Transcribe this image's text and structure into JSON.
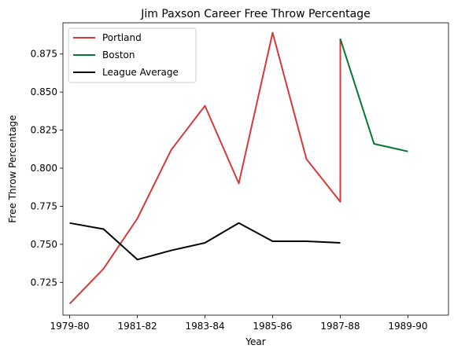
{
  "chart_data": {
    "type": "line",
    "title": "Jim Paxson Career Free Throw Percentage",
    "xlabel": "Year",
    "ylabel": "Free Throw Percentage",
    "x_tick_labels": [
      "1979-80",
      "1981-82",
      "1983-84",
      "1985-86",
      "1987-88",
      "1989-90"
    ],
    "y_tick_labels": [
      "0.725",
      "0.750",
      "0.775",
      "0.800",
      "0.825",
      "0.850",
      "0.875"
    ],
    "xlim": [
      1978.8,
      1990.2
    ],
    "ylim": [
      0.7035,
      0.8955
    ],
    "legend_position": "upper-left",
    "grid": false,
    "series": [
      {
        "name": "Portland",
        "color": "#d9383a",
        "x": [
          1979,
          1980,
          1981,
          1982,
          1983,
          1984,
          1985,
          1986,
          1987,
          1987
        ],
        "y": [
          0.711,
          0.734,
          0.767,
          0.812,
          0.841,
          0.79,
          0.889,
          0.806,
          0.778,
          0.885
        ]
      },
      {
        "name": "Boston",
        "color": "#007a33",
        "x": [
          1987,
          1988,
          1989
        ],
        "y": [
          0.885,
          0.816,
          0.811
        ]
      },
      {
        "name": "League Average",
        "color": "#000000",
        "x": [
          1979,
          1980,
          1981,
          1982,
          1983,
          1984,
          1985,
          1986,
          1987
        ],
        "y": [
          0.764,
          0.76,
          0.74,
          0.746,
          0.751,
          0.764,
          0.752,
          0.752,
          0.751
        ]
      }
    ]
  }
}
